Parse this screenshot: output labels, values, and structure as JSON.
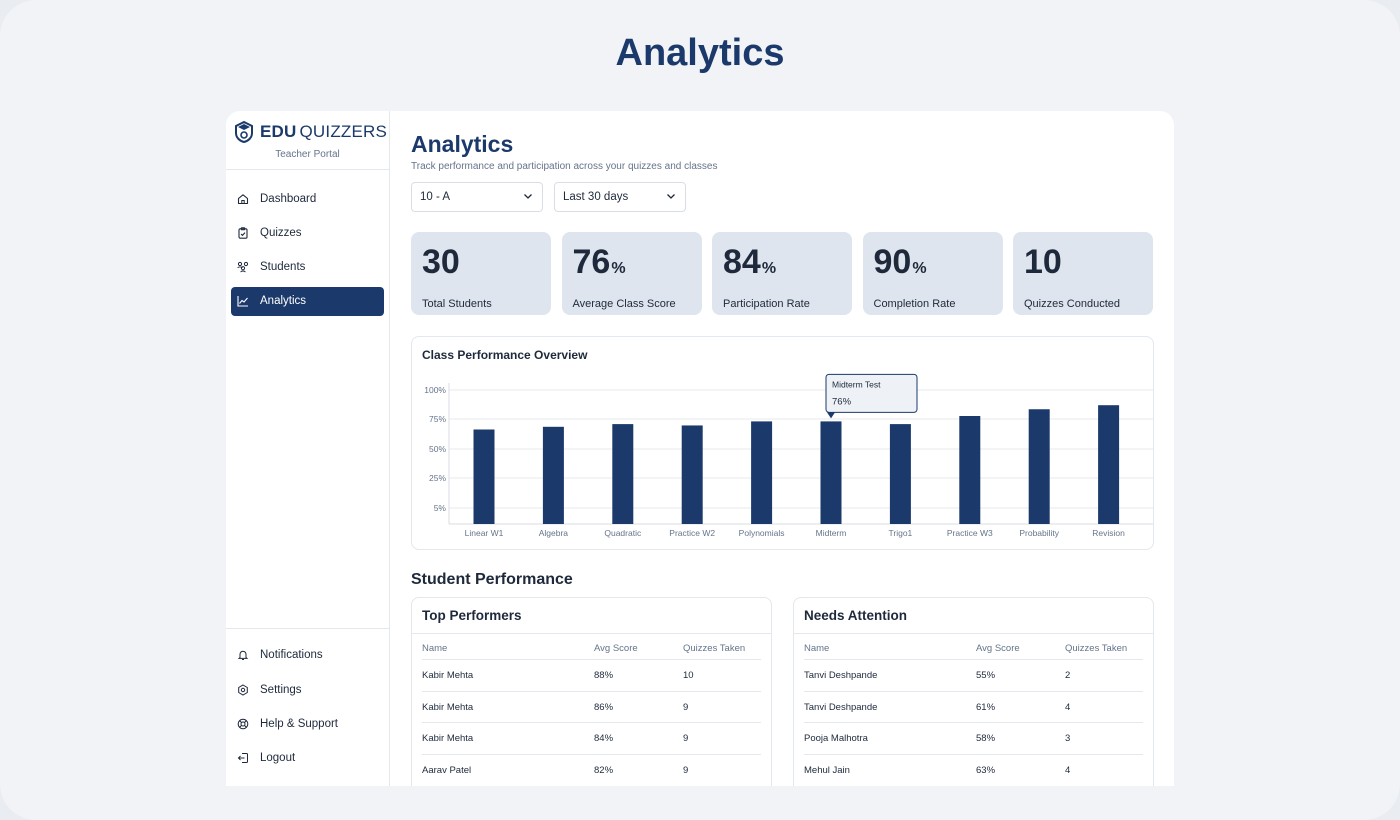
{
  "page_heading": "Analytics",
  "brand": {
    "bold": "EDU",
    "light": "QUIZZERS",
    "subtitle": "Teacher Portal"
  },
  "nav": [
    {
      "label": "Dashboard",
      "icon": "home-icon"
    },
    {
      "label": "Quizzes",
      "icon": "clipboard-icon"
    },
    {
      "label": "Students",
      "icon": "users-icon"
    },
    {
      "label": "Analytics",
      "icon": "chart-line-icon",
      "active": true
    }
  ],
  "nav_bottom": [
    {
      "label": "Notifications",
      "icon": "bell-icon"
    },
    {
      "label": "Settings",
      "icon": "gear-icon"
    },
    {
      "label": "Help & Support",
      "icon": "lifebuoy-icon"
    },
    {
      "label": "Logout",
      "icon": "logout-icon"
    }
  ],
  "main": {
    "title": "Analytics",
    "subtitle": "Track performance and participation across your quizzes and classes",
    "filters": {
      "class": "10 - A",
      "range": "Last 30 days"
    }
  },
  "stats": [
    {
      "value": "30",
      "unit": "",
      "label": "Total Students"
    },
    {
      "value": "76",
      "unit": "%",
      "label": "Average Class Score"
    },
    {
      "value": "84",
      "unit": "%",
      "label": "Participation Rate"
    },
    {
      "value": "90",
      "unit": "%",
      "label": "Completion Rate"
    },
    {
      "value": "10",
      "unit": "",
      "label": "Quizzes Conducted"
    }
  ],
  "chart_data": {
    "type": "bar",
    "title": "Class Performance Overview",
    "categories": [
      "Linear W1",
      "Algebra",
      "Quadratic",
      "Practice W2",
      "Polynomials",
      "Midterm",
      "Trigo1",
      "Practice W3",
      "Probability",
      "Revision"
    ],
    "values": [
      70,
      72,
      74,
      73,
      76,
      76,
      74,
      80,
      85,
      88
    ],
    "y_ticks": [
      "100%",
      "75%",
      "50%",
      "25%",
      "5%"
    ],
    "tooltip": {
      "label": "Midterm Test",
      "value": "76%",
      "category_index": 5
    },
    "bar_color": "#1b3a6b",
    "grid": true
  },
  "student_performance": {
    "title": "Student Performance",
    "columns": [
      "Name",
      "Avg Score",
      "Quizzes Taken"
    ],
    "top": {
      "title": "Top Performers",
      "rows": [
        [
          "Kabir Mehta",
          "88%",
          "10"
        ],
        [
          "Kabir Mehta",
          "86%",
          "9"
        ],
        [
          "Kabir Mehta",
          "84%",
          "9"
        ],
        [
          "Aarav Patel",
          "82%",
          "9"
        ]
      ]
    },
    "attention": {
      "title": "Needs Attention",
      "rows": [
        [
          "Tanvi Deshpande",
          "55%",
          "2"
        ],
        [
          "Tanvi Deshpande",
          "61%",
          "4"
        ],
        [
          "Pooja Malhotra",
          "58%",
          "3"
        ],
        [
          "Mehul Jain",
          "63%",
          "4"
        ]
      ]
    }
  },
  "colors": {
    "brand": "#1b3a6b",
    "stat_bg": "#dfe5ee"
  }
}
